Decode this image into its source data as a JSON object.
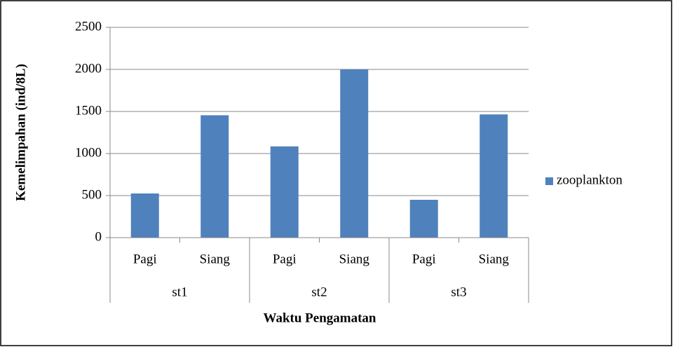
{
  "chart_data": {
    "type": "bar",
    "categories": [
      "Pagi",
      "Siang",
      "Pagi",
      "Siang",
      "Pagi",
      "Siang"
    ],
    "groups": [
      "st1",
      "st2",
      "st3"
    ],
    "series": [
      {
        "name": "zooplankton",
        "color": "#4f81bd",
        "values": [
          525,
          1455,
          1085,
          2000,
          450,
          1465
        ]
      }
    ],
    "ylim": [
      0,
      2500
    ],
    "yticks": [
      0,
      500,
      1000,
      1500,
      2000,
      2500
    ],
    "grid": true,
    "x_label": "Waktu Pengamatan",
    "y_label": "Kemelimpahan (ind/8L)",
    "legend": "right"
  }
}
